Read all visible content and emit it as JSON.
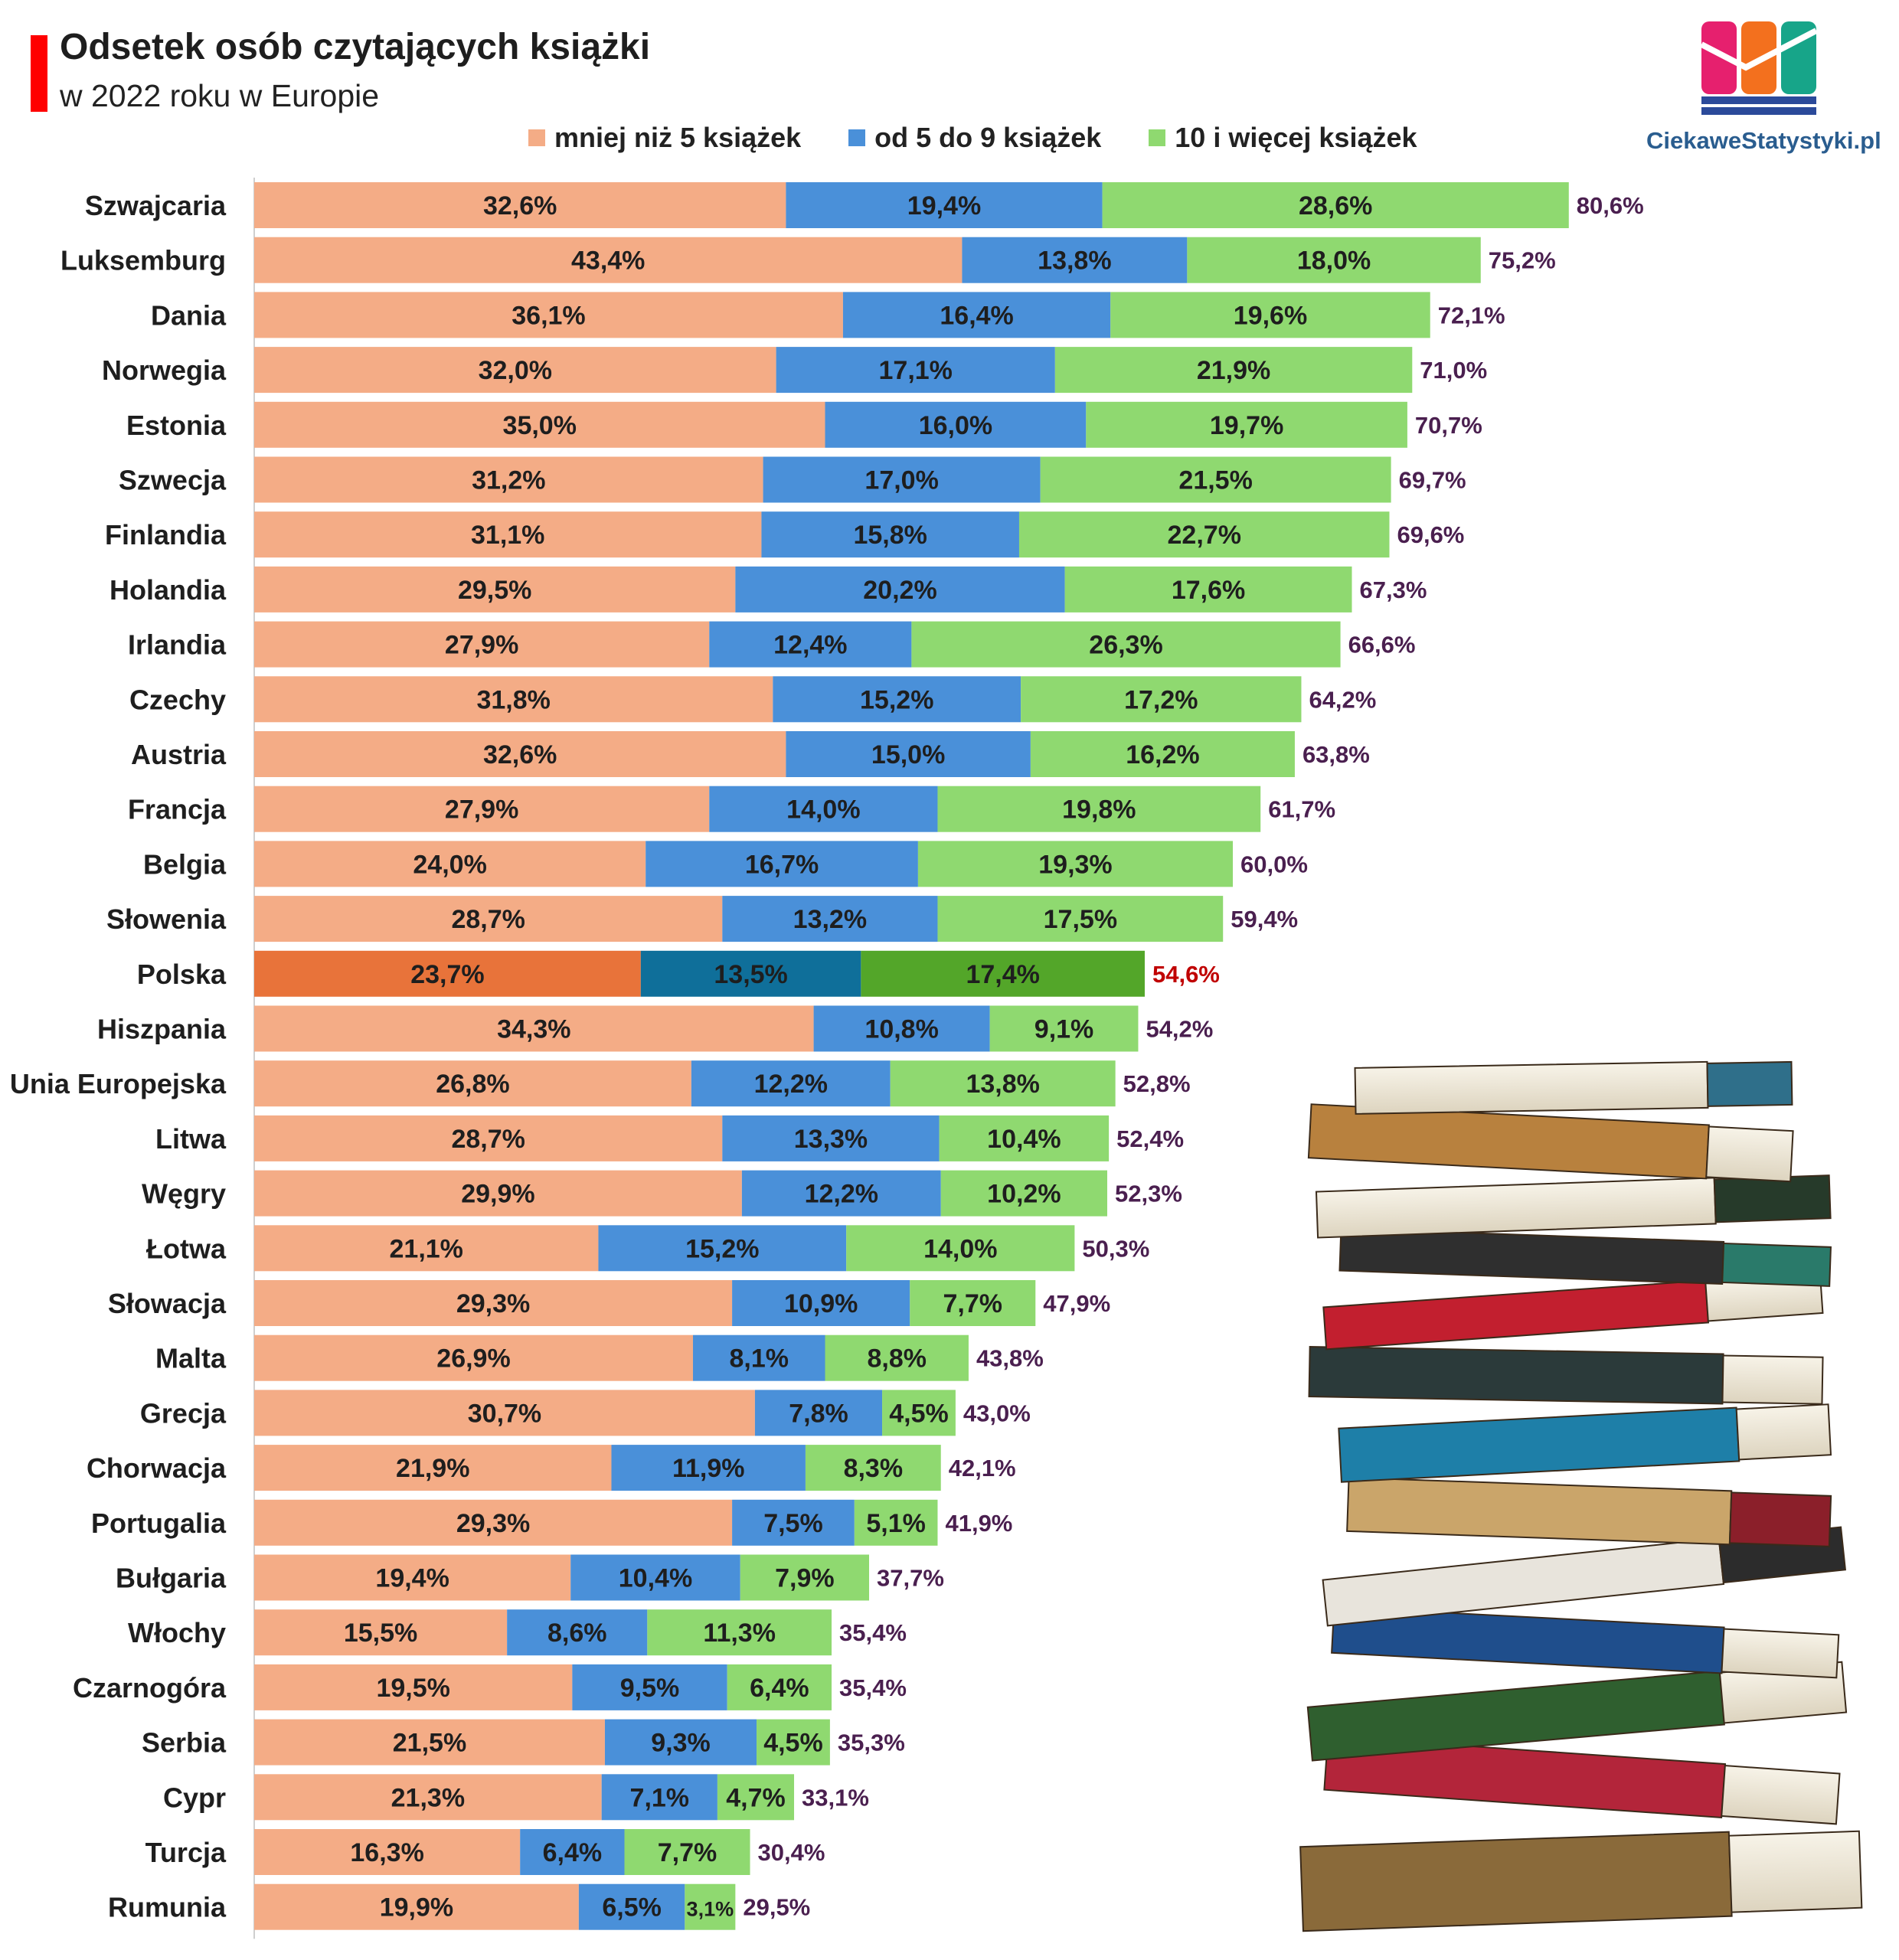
{
  "header": {
    "title": "Odsetek osób czytających książki",
    "subtitle": "w 2022 roku w Europie"
  },
  "logo": {
    "text": "CiekaweStatystyki.pl",
    "icon": "bar-chart-logo-icon"
  },
  "illustration": {
    "icon": "book-stack-icon"
  },
  "legend": {
    "items": [
      {
        "label": "mniej niż 5 książek",
        "color": "#f4ac86"
      },
      {
        "label": "od 5 do 9 książek",
        "color": "#4a90d9"
      },
      {
        "label": "10 i więcej książek",
        "color": "#8fd970"
      }
    ]
  },
  "colors": {
    "s1": "#f4ac86",
    "s2": "#4a90d9",
    "s3": "#8fd970",
    "s1_highlight": "#e8733a",
    "s2_highlight": "#0f6f9a",
    "s3_highlight": "#53a629",
    "total_label": "#4a1f4f",
    "total_highlight": "#c00000",
    "title_bar": "#ff0000"
  },
  "chart_data": {
    "type": "bar",
    "orientation": "horizontal",
    "stacked": true,
    "grid": false,
    "legend_position": "top",
    "highlighted_category": "Polska",
    "categories": [
      "Szwajcaria",
      "Luksemburg",
      "Dania",
      "Norwegia",
      "Estonia",
      "Szwecja",
      "Finlandia",
      "Holandia",
      "Irlandia",
      "Czechy",
      "Austria",
      "Francja",
      "Belgia",
      "Słowenia",
      "Polska",
      "Hiszpania",
      "Unia Europejska",
      "Litwa",
      "Węgry",
      "Łotwa",
      "Słowacja",
      "Malta",
      "Grecja",
      "Chorwacja",
      "Portugalia",
      "Bułgaria",
      "Włochy",
      "Czarnogóra",
      "Serbia",
      "Cypr",
      "Turcja",
      "Rumunia"
    ],
    "series": [
      {
        "name": "mniej niż 5 książek",
        "values": [
          32.6,
          43.4,
          36.1,
          32.0,
          35.0,
          31.2,
          31.1,
          29.5,
          27.9,
          31.8,
          32.6,
          27.9,
          24.0,
          28.7,
          23.7,
          34.3,
          26.8,
          28.7,
          29.9,
          21.1,
          29.3,
          26.9,
          30.7,
          21.9,
          29.3,
          19.4,
          15.5,
          19.5,
          21.5,
          21.3,
          16.3,
          19.9
        ],
        "labels": [
          "32,6%",
          "43,4%",
          "36,1%",
          "32,0%",
          "35,0%",
          "31,2%",
          "31,1%",
          "29,5%",
          "27,9%",
          "31,8%",
          "32,6%",
          "27,9%",
          "24,0%",
          "28,7%",
          "23,7%",
          "34,3%",
          "26,8%",
          "28,7%",
          "29,9%",
          "21,1%",
          "29,3%",
          "26,9%",
          "30,7%",
          "21,9%",
          "29,3%",
          "19,4%",
          "15,5%",
          "19,5%",
          "21,5%",
          "21,3%",
          "16,3%",
          "19,9%"
        ]
      },
      {
        "name": "od 5 do 9 książek",
        "values": [
          19.4,
          13.8,
          16.4,
          17.1,
          16.0,
          17.0,
          15.8,
          20.2,
          12.4,
          15.2,
          15.0,
          14.0,
          16.7,
          13.2,
          13.5,
          10.8,
          12.2,
          13.3,
          12.2,
          15.2,
          10.9,
          8.1,
          7.8,
          11.9,
          7.5,
          10.4,
          8.6,
          9.5,
          9.3,
          7.1,
          6.4,
          6.5
        ],
        "labels": [
          "19,4%",
          "13,8%",
          "16,4%",
          "17,1%",
          "16,0%",
          "17,0%",
          "15,8%",
          "20,2%",
          "12,4%",
          "15,2%",
          "15,0%",
          "14,0%",
          "16,7%",
          "13,2%",
          "13,5%",
          "10,8%",
          "12,2%",
          "13,3%",
          "12,2%",
          "15,2%",
          "10,9%",
          "8,1%",
          "7,8%",
          "11,9%",
          "7,5%",
          "10,4%",
          "8,6%",
          "9,5%",
          "9,3%",
          "7,1%",
          "6,4%",
          "6,5%"
        ]
      },
      {
        "name": "10 i więcej książek",
        "values": [
          28.6,
          18.0,
          19.6,
          21.9,
          19.7,
          21.5,
          22.7,
          17.6,
          26.3,
          17.2,
          16.2,
          19.8,
          19.3,
          17.5,
          17.4,
          9.1,
          13.8,
          10.4,
          10.2,
          14.0,
          7.7,
          8.8,
          4.5,
          8.3,
          5.1,
          7.9,
          11.3,
          6.4,
          4.5,
          4.7,
          7.7,
          3.1
        ],
        "labels": [
          "28,6%",
          "18,0%",
          "19,6%",
          "21,9%",
          "19,7%",
          "21,5%",
          "22,7%",
          "17,6%",
          "26,3%",
          "17,2%",
          "16,2%",
          "19,8%",
          "19,3%",
          "17,5%",
          "17,4%",
          "9,1%",
          "13,8%",
          "10,4%",
          "10,2%",
          "14,0%",
          "7,7%",
          "8,8%",
          "4,5%",
          "8,3%",
          "5,1%",
          "7,9%",
          "11,3%",
          "6,4%",
          "4,5%",
          "4,7%",
          "7,7%",
          "3,1%"
        ]
      }
    ],
    "totals": [
      80.6,
      75.2,
      72.1,
      71.0,
      70.7,
      69.7,
      69.6,
      67.3,
      66.6,
      64.2,
      63.8,
      61.7,
      60.0,
      59.4,
      54.6,
      54.2,
      52.8,
      52.4,
      52.3,
      50.3,
      47.9,
      43.8,
      43.0,
      42.1,
      41.9,
      37.7,
      35.4,
      35.4,
      35.3,
      33.1,
      30.4,
      29.5
    ],
    "total_labels": [
      "80,6%",
      "75,2%",
      "72,1%",
      "71,0%",
      "70,7%",
      "69,7%",
      "69,6%",
      "67,3%",
      "66,6%",
      "64,2%",
      "63,8%",
      "61,7%",
      "60,0%",
      "59,4%",
      "54,6%",
      "54,2%",
      "52,8%",
      "52,4%",
      "52,3%",
      "50,3%",
      "47,9%",
      "43,8%",
      "43,0%",
      "42,1%",
      "41,9%",
      "37,7%",
      "35,4%",
      "35,4%",
      "35,3%",
      "33,1%",
      "30,4%",
      "29,5%"
    ]
  }
}
